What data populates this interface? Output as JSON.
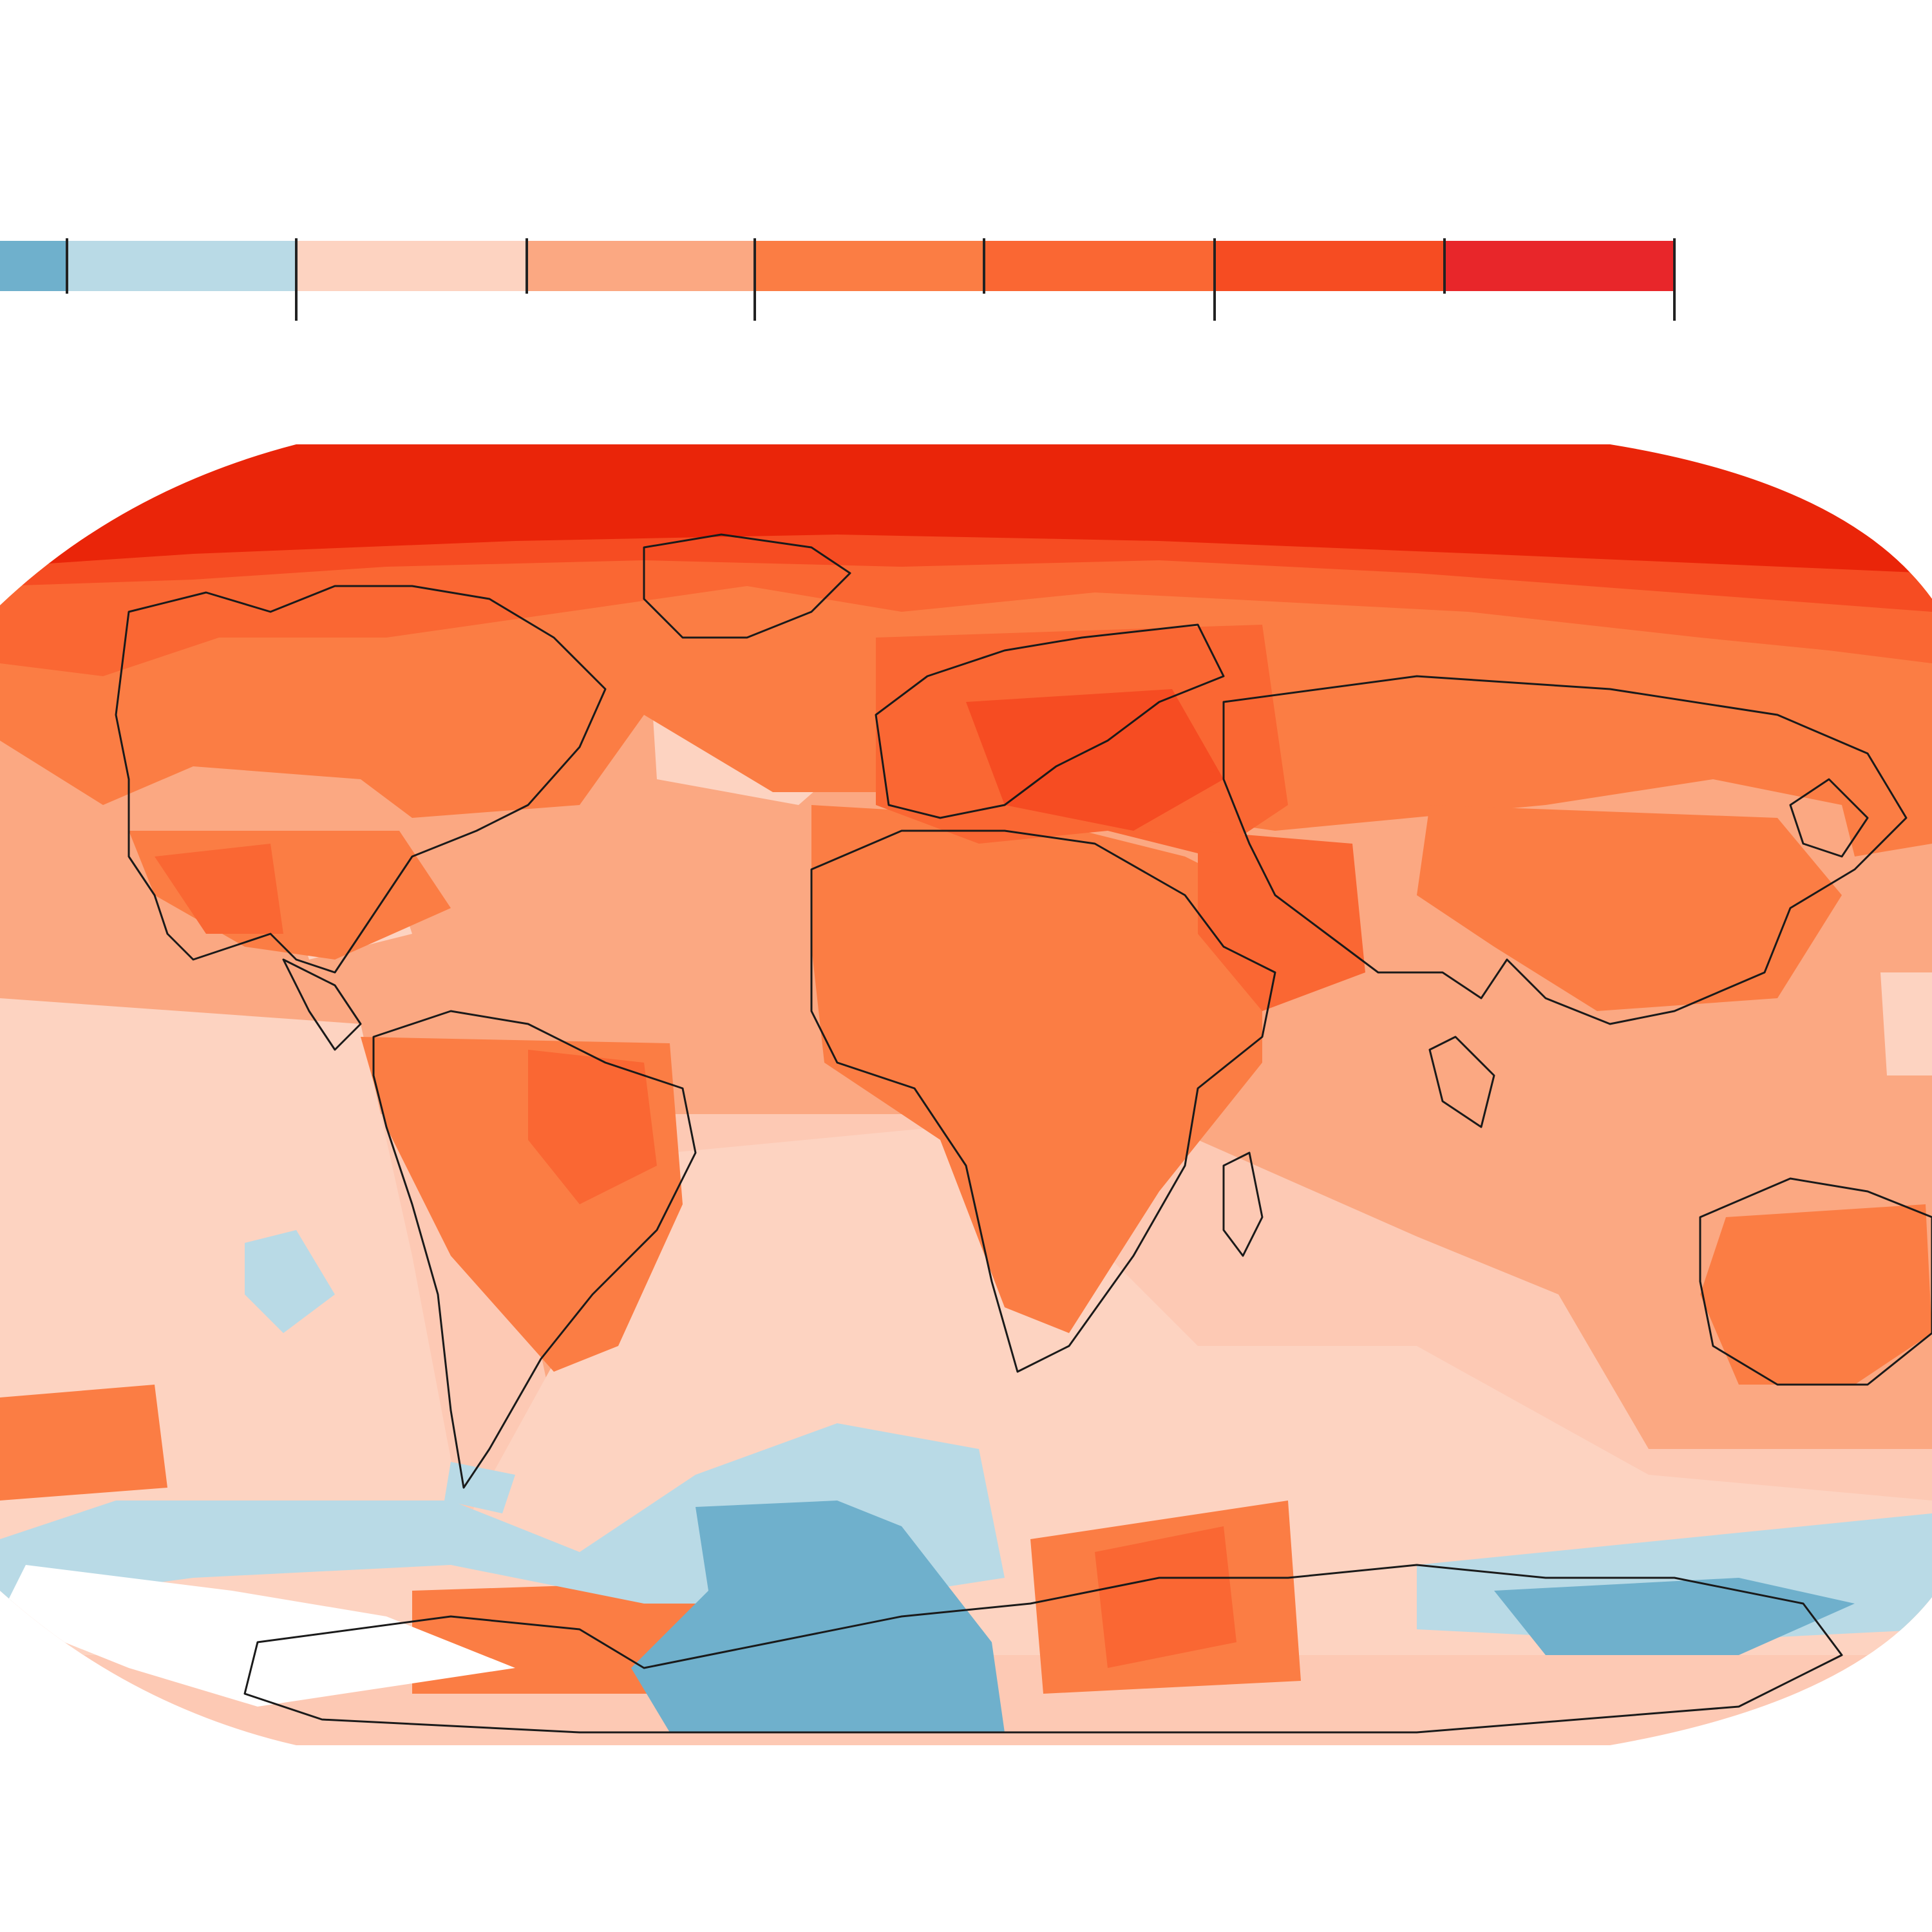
{
  "legend": {
    "bins": [
      {
        "color": "#6fb0cc",
        "label": ""
      },
      {
        "color": "#b9dae6",
        "label": ""
      },
      {
        "color": "#fdd3c1",
        "label": ""
      },
      {
        "color": "#fba882",
        "label": ""
      },
      {
        "color": "#fb7d44",
        "label": ""
      },
      {
        "color": "#fa6733",
        "label": ""
      },
      {
        "color": "#f64c22",
        "label": ""
      },
      {
        "color": "#e8262a",
        "label": ""
      }
    ]
  },
  "map": {
    "ocean_base_color": "#fdc9b4",
    "polar_fill": "#ea2509",
    "outline_color": "#1a1a1a",
    "palette": {
      "cold_strong": "#6fb0cc",
      "cold": "#b9dae6",
      "warm_light": "#fdd3c1",
      "warm": "#fba882",
      "warm_mid": "#fb7d44",
      "hot": "#fa6733",
      "hotter": "#f64c22",
      "hottest": "#ea2509",
      "no_data": "#ffffff"
    }
  }
}
